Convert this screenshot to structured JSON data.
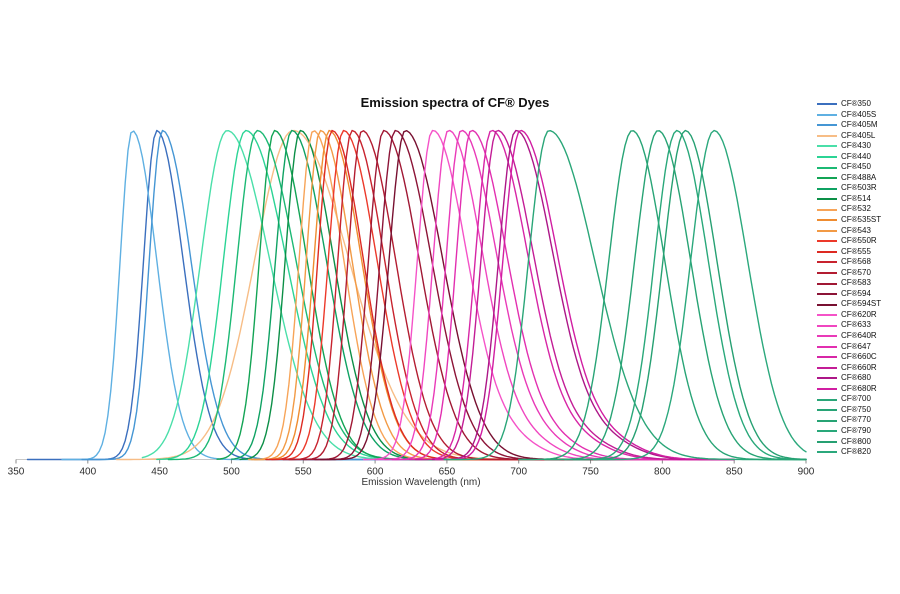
{
  "chart_data": {
    "type": "line",
    "title": "Emission spectra of CF® Dyes",
    "xlabel": "Emission Wavelength (nm)",
    "x_range": [
      350,
      900
    ],
    "x_ticks": [
      350,
      400,
      450,
      500,
      550,
      600,
      650,
      700,
      750,
      800,
      850,
      900
    ],
    "ylim": [
      0,
      1
    ],
    "normalized": true,
    "grid": false,
    "legend_position": "right",
    "series": [
      {
        "name": "CF®350",
        "color": "#3b6fbe",
        "peak_nm": 448,
        "width_left_nm": 13,
        "width_right_nm": 26,
        "range_nm": [
          358,
          600
        ]
      },
      {
        "name": "CF®405S",
        "color": "#5fb0e2",
        "peak_nm": 431,
        "width_left_nm": 12,
        "width_right_nm": 24,
        "range_nm": [
          382,
          680
        ]
      },
      {
        "name": "CF®405M",
        "color": "#4596d4",
        "peak_nm": 452,
        "width_left_nm": 13,
        "width_right_nm": 28,
        "range_nm": [
          396,
          830
        ]
      },
      {
        "name": "CF®405L",
        "color": "#f7bd86",
        "peak_nm": 543,
        "width_left_nm": 38,
        "width_right_nm": 55,
        "range_nm": [
          420,
          720
        ]
      },
      {
        "name": "CF®430",
        "color": "#4adfa9",
        "peak_nm": 497,
        "width_left_nm": 26,
        "width_right_nm": 42,
        "range_nm": [
          438,
          650
        ]
      },
      {
        "name": "CF®440",
        "color": "#2bd495",
        "peak_nm": 510,
        "width_left_nm": 22,
        "width_right_nm": 40,
        "range_nm": [
          448,
          665
        ]
      },
      {
        "name": "CF®450",
        "color": "#1cb974",
        "peak_nm": 518,
        "width_left_nm": 20,
        "width_right_nm": 38,
        "range_nm": [
          456,
          680
        ]
      },
      {
        "name": "CF®488A",
        "color": "#13a455",
        "peak_nm": 530,
        "width_left_nm": 15,
        "width_right_nm": 32,
        "range_nm": [
          490,
          690
        ]
      },
      {
        "name": "CF®503R",
        "color": "#0fa263",
        "peak_nm": 542,
        "width_left_nm": 16,
        "width_right_nm": 34,
        "range_nm": [
          500,
          700
        ]
      },
      {
        "name": "CF®514",
        "color": "#0c8f47",
        "peak_nm": 548,
        "width_left_nm": 15,
        "width_right_nm": 33,
        "range_nm": [
          506,
          700
        ]
      },
      {
        "name": "CF®532",
        "color": "#f7a458",
        "peak_nm": 557,
        "width_left_nm": 14,
        "width_right_nm": 30,
        "range_nm": [
          512,
          740
        ]
      },
      {
        "name": "CF®535ST",
        "color": "#ef8c30",
        "peak_nm": 568,
        "width_left_nm": 15,
        "width_right_nm": 32,
        "range_nm": [
          516,
          750
        ]
      },
      {
        "name": "CF®543",
        "color": "#f29a45",
        "peak_nm": 562,
        "width_left_nm": 14,
        "width_right_nm": 31,
        "range_nm": [
          514,
          745
        ]
      },
      {
        "name": "CF®550R",
        "color": "#ec392a",
        "peak_nm": 578,
        "width_left_nm": 15,
        "width_right_nm": 33,
        "range_nm": [
          528,
          770
        ]
      },
      {
        "name": "CF®555",
        "color": "#dd2a22",
        "peak_nm": 570,
        "width_left_nm": 14,
        "width_right_nm": 31,
        "range_nm": [
          524,
          760
        ]
      },
      {
        "name": "CF®568",
        "color": "#c8232e",
        "peak_nm": 584,
        "width_left_nm": 14,
        "width_right_nm": 32,
        "range_nm": [
          536,
          775
        ]
      },
      {
        "name": "CF®570",
        "color": "#b31d31",
        "peak_nm": 591,
        "width_left_nm": 14,
        "width_right_nm": 33,
        "range_nm": [
          540,
          780
        ]
      },
      {
        "name": "CF®583",
        "color": "#a01834",
        "peak_nm": 606,
        "width_left_nm": 15,
        "width_right_nm": 35,
        "range_nm": [
          550,
          790
        ]
      },
      {
        "name": "CF®594",
        "color": "#8c1437",
        "peak_nm": 614,
        "width_left_nm": 15,
        "width_right_nm": 36,
        "range_nm": [
          558,
          795
        ]
      },
      {
        "name": "CF®594ST",
        "color": "#781031",
        "peak_nm": 621,
        "width_left_nm": 16,
        "width_right_nm": 37,
        "range_nm": [
          562,
          800
        ]
      },
      {
        "name": "CF®620R",
        "color": "#f553c8",
        "peak_nm": 640,
        "width_left_nm": 15,
        "width_right_nm": 34,
        "range_nm": [
          592,
          840
        ],
        "shoulder": {
          "offset": 55,
          "height": 0.05,
          "width": 28
        }
      },
      {
        "name": "CF®633",
        "color": "#f046c0",
        "peak_nm": 651,
        "width_left_nm": 15,
        "width_right_nm": 34,
        "range_nm": [
          600,
          845
        ],
        "shoulder": {
          "offset": 55,
          "height": 0.05,
          "width": 28
        }
      },
      {
        "name": "CF®640R",
        "color": "#e93ab8",
        "peak_nm": 660,
        "width_left_nm": 15,
        "width_right_nm": 35,
        "range_nm": [
          607,
          848
        ],
        "shoulder": {
          "offset": 56,
          "height": 0.05,
          "width": 28
        }
      },
      {
        "name": "CF®647",
        "color": "#e22fb0",
        "peak_nm": 667,
        "width_left_nm": 15,
        "width_right_nm": 35,
        "range_nm": [
          612,
          850
        ],
        "shoulder": {
          "offset": 56,
          "height": 0.05,
          "width": 29
        }
      },
      {
        "name": "CF®660C",
        "color": "#d726a6",
        "peak_nm": 681,
        "width_left_nm": 16,
        "width_right_nm": 36,
        "range_nm": [
          624,
          850
        ],
        "shoulder": {
          "offset": 60,
          "height": 0.05,
          "width": 30
        }
      },
      {
        "name": "CF®660R",
        "color": "#c31d96",
        "peak_nm": 685,
        "width_left_nm": 16,
        "width_right_nm": 36,
        "range_nm": [
          628,
          850
        ],
        "shoulder": {
          "offset": 60,
          "height": 0.05,
          "width": 30
        }
      },
      {
        "name": "CF®680",
        "color": "#ad1788",
        "peak_nm": 698,
        "width_left_nm": 17,
        "width_right_nm": 37,
        "range_nm": [
          640,
          850
        ],
        "shoulder": {
          "offset": 62,
          "height": 0.05,
          "width": 30
        }
      },
      {
        "name": "CF®680R",
        "color": "#d11ea2",
        "peak_nm": 701,
        "width_left_nm": 17,
        "width_right_nm": 37,
        "range_nm": [
          642,
          850
        ],
        "shoulder": {
          "offset": 62,
          "height": 0.05,
          "width": 30
        }
      },
      {
        "name": "CF®700",
        "color": "#2aa678",
        "peak_nm": 721,
        "width_left_nm": 20,
        "width_right_nm": 45,
        "range_nm": [
          648,
          900
        ]
      },
      {
        "name": "CF®750",
        "color": "#28a476",
        "peak_nm": 779,
        "width_left_nm": 23,
        "width_right_nm": 32,
        "range_nm": [
          700,
          900
        ]
      },
      {
        "name": "CF®770",
        "color": "#27a374",
        "peak_nm": 797,
        "width_left_nm": 23,
        "width_right_nm": 32,
        "range_nm": [
          718,
          900
        ]
      },
      {
        "name": "CF®790",
        "color": "#29a87a",
        "peak_nm": 810,
        "width_left_nm": 22,
        "width_right_nm": 31,
        "range_nm": [
          732,
          900
        ]
      },
      {
        "name": "CF®800",
        "color": "#26a072",
        "peak_nm": 816,
        "width_left_nm": 22,
        "width_right_nm": 31,
        "range_nm": [
          738,
          900
        ]
      },
      {
        "name": "CF®820",
        "color": "#2ba87c",
        "peak_nm": 836,
        "width_left_nm": 23,
        "width_right_nm": 33,
        "range_nm": [
          752,
          900
        ]
      }
    ]
  }
}
